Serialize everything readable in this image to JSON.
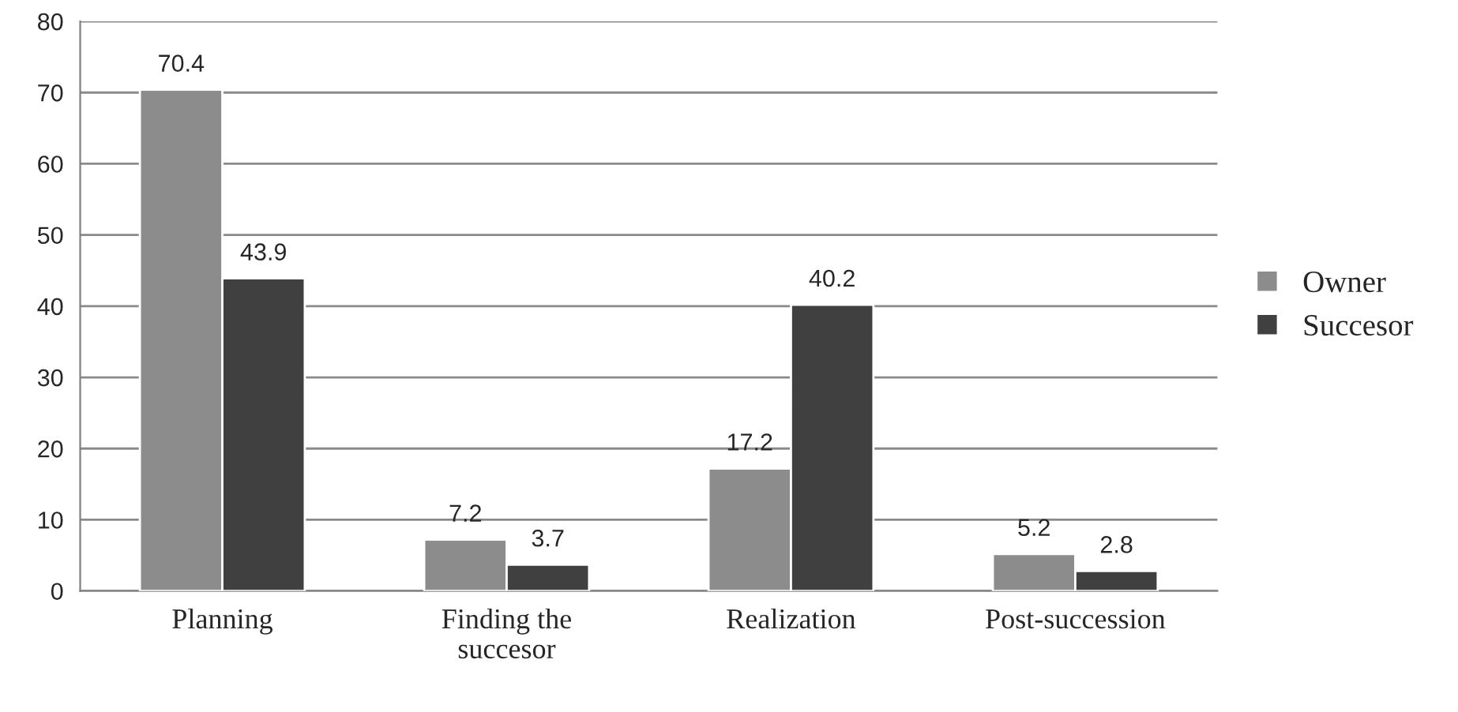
{
  "chart_data": {
    "type": "bar",
    "categories": [
      "Planning",
      "Finding the\nsuccesor",
      "Realization",
      "Post-succession"
    ],
    "series": [
      {
        "name": "Owner",
        "color": "#8c8c8c",
        "values": [
          70.4,
          7.2,
          17.2,
          5.2
        ]
      },
      {
        "name": "Succesor",
        "color": "#404040",
        "values": [
          43.9,
          3.7,
          40.2,
          2.8
        ]
      }
    ],
    "ylim": [
      0,
      80
    ],
    "yticks": [
      0,
      10,
      20,
      30,
      40,
      50,
      60,
      70,
      80
    ],
    "grid": "y",
    "legend": "right",
    "data_labels": true
  }
}
